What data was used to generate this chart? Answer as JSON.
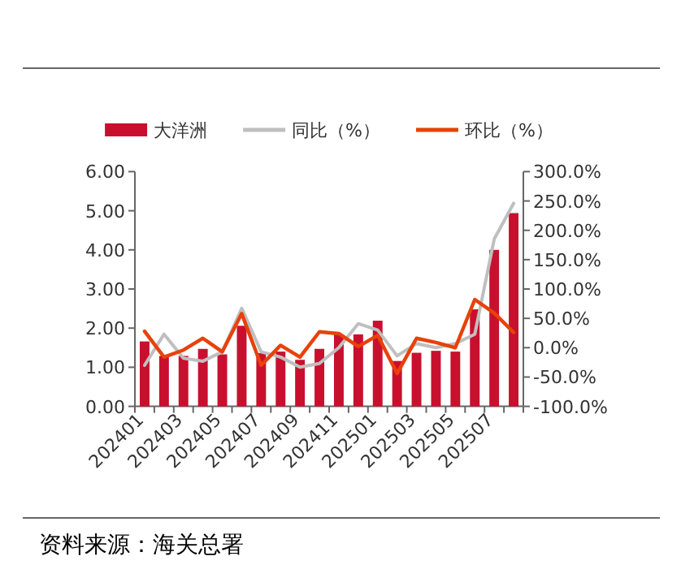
{
  "chart_data": {
    "type": "bar",
    "categories": [
      "202401",
      null,
      "202403",
      null,
      "202405",
      null,
      "202407",
      null,
      "202409",
      null,
      "202411",
      null,
      "202501",
      null,
      "202503",
      null,
      "202505",
      null,
      "202507",
      null
    ],
    "series": [
      {
        "name": "大洋洲",
        "color": "#c8102e",
        "values": [
          1.66,
          1.29,
          1.29,
          1.47,
          1.33,
          2.06,
          1.36,
          1.4,
          1.19,
          1.47,
          1.84,
          1.84,
          2.19,
          1.16,
          1.37,
          1.42,
          1.4,
          2.48,
          4.0,
          4.94
        ]
      },
      {
        "name": "同比（%）",
        "type": "line",
        "axis": "y2",
        "color": "#bfbfbf",
        "values": [
          -30,
          23,
          -18,
          -23,
          -7,
          67,
          -7,
          -16,
          -33,
          -27,
          0,
          41,
          30,
          -14,
          7,
          0,
          7,
          23,
          185,
          246
        ]
      },
      {
        "name": "环比（%）",
        "type": "line",
        "axis": "y2",
        "color": "#e8410a",
        "values": [
          28,
          -16,
          -4,
          16,
          -7,
          58,
          -30,
          4,
          -16,
          27,
          24,
          2,
          21,
          -44,
          16,
          9,
          0,
          82,
          59,
          26
        ]
      }
    ],
    "ylim": [
      0,
      6
    ],
    "yticks": [
      {
        "value": 0,
        "label": "0.00"
      },
      {
        "value": 1,
        "label": "1.00"
      },
      {
        "value": 2,
        "label": "2.00"
      },
      {
        "value": 3,
        "label": "3.00"
      },
      {
        "value": 4,
        "label": "4.00"
      },
      {
        "value": 5,
        "label": "5.00"
      },
      {
        "value": 6,
        "label": "6.00"
      }
    ],
    "y2lim": [
      -100,
      300
    ],
    "y2ticks": [
      {
        "value": -100,
        "label": "-100.0%"
      },
      {
        "value": -50,
        "label": "-50.0%"
      },
      {
        "value": 0,
        "label": "0.0%"
      },
      {
        "value": 50,
        "label": "50.0%"
      },
      {
        "value": 100,
        "label": "100.0%"
      },
      {
        "value": 150,
        "label": "150.0%"
      },
      {
        "value": 200,
        "label": "200.0%"
      },
      {
        "value": 250,
        "label": "250.0%"
      },
      {
        "value": 300,
        "label": "300.0%"
      }
    ],
    "legend": "top",
    "grid": false,
    "marker": "none",
    "line_style": "solid",
    "annotations": [
      "资料来源：海关总署"
    ]
  }
}
